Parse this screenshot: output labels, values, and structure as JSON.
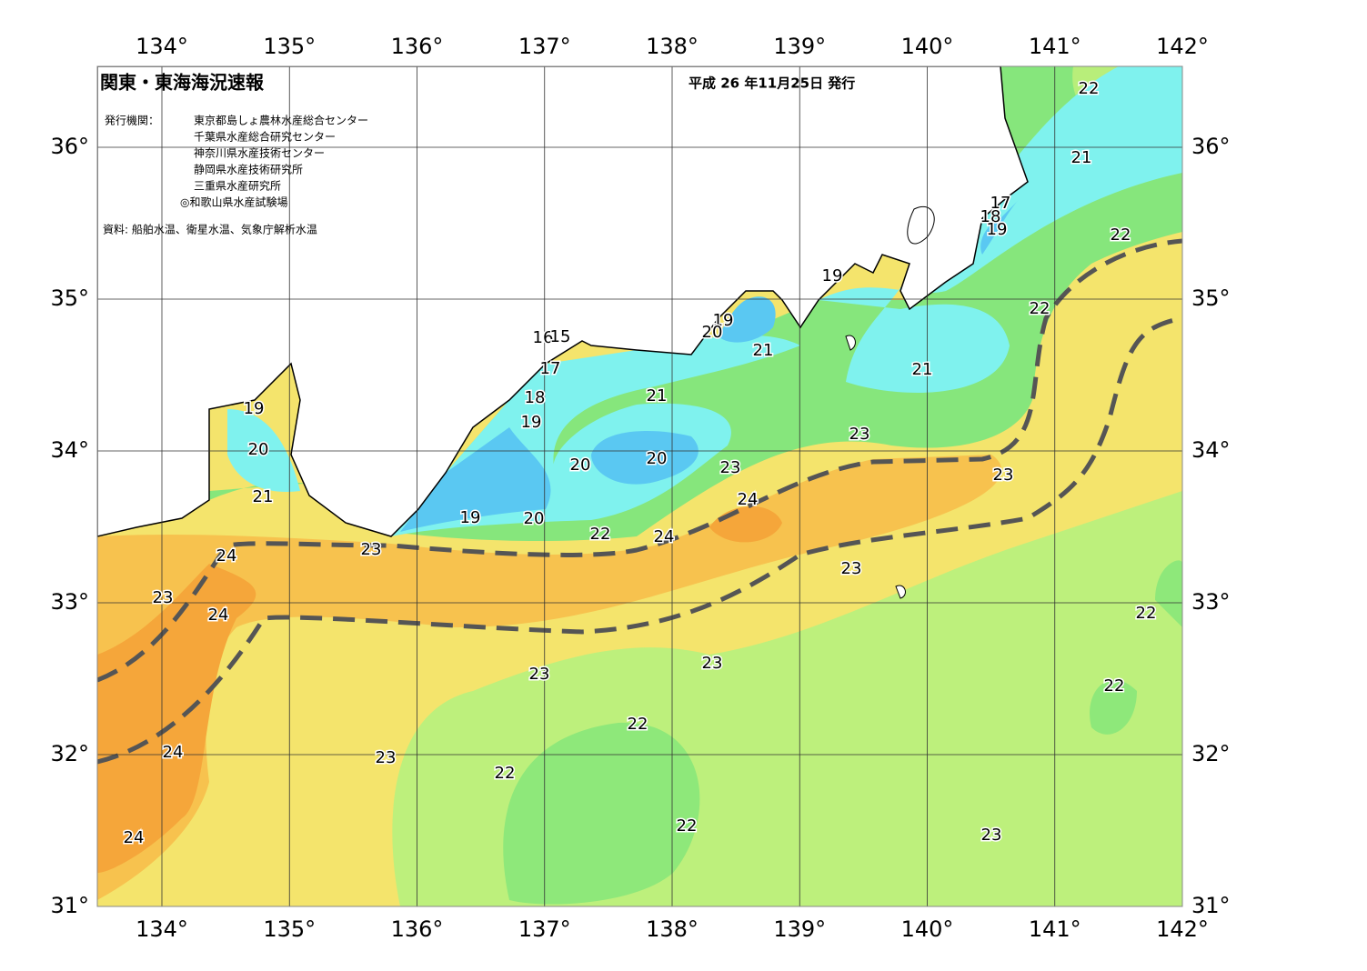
{
  "header": {
    "title": "関東・東海海況速報",
    "date": "平成 26 年11月25日 発行",
    "issuer_label": "発行機関：",
    "issuers": [
      "東京都島しょ農林水産総合センター",
      "千葉県水産総合研究センター",
      "神奈川県水産技術センター",
      "静岡県水産技術研究所",
      "三重県水産研究所",
      "◎和歌山県水産試験場"
    ],
    "source": "資料: 船舶水温、衛星水温、気象庁解析水温"
  },
  "axes": {
    "lon_labels": [
      "134°",
      "135°",
      "136°",
      "137°",
      "138°",
      "139°",
      "140°",
      "141°",
      "142°"
    ],
    "lat_labels": [
      "31°",
      "32°",
      "33°",
      "34°",
      "35°",
      "36°"
    ]
  },
  "contour_labels": [
    22,
    21,
    17,
    18,
    19,
    22,
    19,
    22,
    19,
    20,
    16,
    15,
    17,
    21,
    21,
    21,
    18,
    19,
    19,
    23,
    20,
    20,
    20,
    23,
    23,
    21,
    24,
    19,
    20,
    22,
    24,
    24,
    23,
    23,
    23,
    24,
    22,
    23,
    23,
    22,
    22,
    24,
    23,
    22,
    22,
    23,
    24
  ]
}
